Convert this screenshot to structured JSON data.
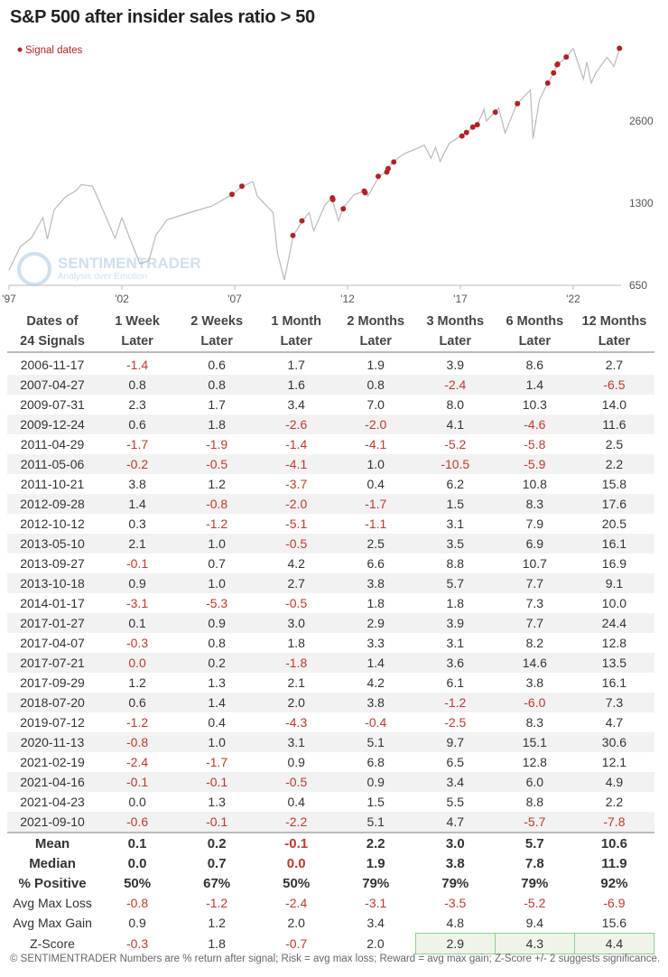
{
  "title": "S&P 500 after insider sales ratio > 50",
  "footer": "© SENTIMENTRADER  Numbers are % return after signal; Risk = avg max loss; Reward = avg max gain; Z-Score +/- 2 suggests significance.",
  "chart_data": {
    "type": "line",
    "title": "S&P 500 after insider sales ratio > 50",
    "legend": {
      "label": "Signal dates",
      "placement": "top-left"
    },
    "watermark": [
      "SENTIMENTRADER",
      "Analysis over Emotion"
    ],
    "y_scale": "log",
    "ylim": [
      650,
      5000
    ],
    "y_ticks": [
      {
        "value": 650,
        "label": "650"
      },
      {
        "value": 1300,
        "label": "1300"
      },
      {
        "value": 2600,
        "label": "2600"
      }
    ],
    "x_ticks": [
      {
        "value": 1997,
        "label": "'97"
      },
      {
        "value": 2002,
        "label": "'02"
      },
      {
        "value": 2007,
        "label": "'07"
      },
      {
        "value": 2012,
        "label": "'12"
      },
      {
        "value": 2017,
        "label": "'17"
      },
      {
        "value": 2022,
        "label": "'22"
      }
    ],
    "xlim": [
      1997,
      2024.3
    ],
    "colors": {
      "line": "#b9b9b9",
      "signal": "#b22222",
      "axis": "#bbbbbb"
    },
    "series": [
      {
        "name": "S&P 500",
        "x": [
          1997.0,
          1997.5,
          1998.0,
          1998.5,
          1998.7,
          1999.0,
          1999.5,
          2000.0,
          2000.2,
          2000.7,
          2001.0,
          2001.7,
          2002.0,
          2002.5,
          2002.8,
          2003.2,
          2003.5,
          2004.0,
          2005.0,
          2006.0,
          2006.9,
          2007.3,
          2007.8,
          2008.0,
          2008.7,
          2008.9,
          2009.2,
          2009.6,
          2010.0,
          2010.3,
          2010.5,
          2011.0,
          2011.3,
          2011.6,
          2011.8,
          2012.3,
          2012.8,
          2012.9,
          2013.4,
          2013.7,
          2013.8,
          2014.0,
          2014.5,
          2015.0,
          2015.4,
          2015.7,
          2015.9,
          2016.1,
          2016.5,
          2017.0,
          2017.3,
          2017.55,
          2017.75,
          2018.05,
          2018.15,
          2018.7,
          2018.98,
          2019.5,
          2020.1,
          2020.22,
          2020.5,
          2020.87,
          2021.13,
          2021.3,
          2021.7,
          2022.0,
          2022.45,
          2022.6,
          2022.8,
          2023.0,
          2023.5,
          2023.8,
          2024.1
        ],
        "values": [
          740,
          900,
          970,
          1150,
          960,
          1230,
          1370,
          1450,
          1520,
          1500,
          1320,
          965,
          1150,
          900,
          780,
          800,
          990,
          1130,
          1200,
          1270,
          1400,
          1490,
          1560,
          1380,
          1200,
          850,
          680,
          990,
          1120,
          1200,
          1030,
          1280,
          1360,
          1120,
          1250,
          1400,
          1440,
          1380,
          1630,
          1690,
          1740,
          1840,
          1970,
          2050,
          2120,
          1900,
          2080,
          1850,
          2150,
          2290,
          2360,
          2470,
          2520,
          2870,
          2600,
          2900,
          2350,
          3000,
          3380,
          2240,
          3100,
          3580,
          3900,
          4180,
          4460,
          4790,
          3700,
          4280,
          3580,
          3900,
          4450,
          4120,
          4900
        ]
      }
    ],
    "signals": {
      "x": [
        2006.88,
        2007.32,
        2009.58,
        2009.98,
        2011.33,
        2011.35,
        2011.81,
        2012.74,
        2012.78,
        2013.36,
        2013.74,
        2013.8,
        2014.05,
        2017.07,
        2017.27,
        2017.55,
        2017.75,
        2018.55,
        2019.53,
        2020.87,
        2021.13,
        2021.29,
        2021.31,
        2021.69,
        2024.05
      ],
      "values": [
        1400,
        1500,
        990,
        1120,
        1360,
        1340,
        1240,
        1440,
        1420,
        1630,
        1690,
        1740,
        1840,
        2290,
        2360,
        2470,
        2520,
        2800,
        3010,
        3580,
        3900,
        4180,
        4200,
        4460,
        4800
      ]
    }
  },
  "table": {
    "headers": [
      [
        "Dates of",
        "24 Signals"
      ],
      [
        "1 Week",
        "Later"
      ],
      [
        "2 Weeks",
        "Later"
      ],
      [
        "1 Month",
        "Later"
      ],
      [
        "2 Months",
        "Later"
      ],
      [
        "3 Months",
        "Later"
      ],
      [
        "6 Months",
        "Later"
      ],
      [
        "12 Months",
        "Later"
      ]
    ],
    "rows": [
      [
        "2006-11-17",
        "-1.4",
        "0.6",
        "1.7",
        "1.9",
        "3.9",
        "8.6",
        "2.7"
      ],
      [
        "2007-04-27",
        "0.8",
        "0.8",
        "1.6",
        "0.8",
        "-2.4",
        "1.4",
        "-6.5"
      ],
      [
        "2009-07-31",
        "2.3",
        "1.7",
        "3.4",
        "7.0",
        "8.0",
        "10.3",
        "14.0"
      ],
      [
        "2009-12-24",
        "0.6",
        "1.8",
        "-2.6",
        "-2.0",
        "4.1",
        "-4.6",
        "11.6"
      ],
      [
        "2011-04-29",
        "-1.7",
        "-1.9",
        "-1.4",
        "-4.1",
        "-5.2",
        "-5.8",
        "2.5"
      ],
      [
        "2011-05-06",
        "-0.2",
        "-0.5",
        "-4.1",
        "1.0",
        "-10.5",
        "-5.9",
        "2.2"
      ],
      [
        "2011-10-21",
        "3.8",
        "1.2",
        "-3.7",
        "0.4",
        "6.2",
        "10.8",
        "15.8"
      ],
      [
        "2012-09-28",
        "1.4",
        "-0.8",
        "-2.0",
        "-1.7",
        "1.5",
        "8.3",
        "17.6"
      ],
      [
        "2012-10-12",
        "0.3",
        "-1.2",
        "-5.1",
        "-1.1",
        "3.1",
        "7.9",
        "20.5"
      ],
      [
        "2013-05-10",
        "2.1",
        "1.0",
        "-0.5",
        "2.5",
        "3.5",
        "6.9",
        "16.1"
      ],
      [
        "2013-09-27",
        "-0.1",
        "0.7",
        "4.2",
        "6.6",
        "8.8",
        "10.7",
        "16.9"
      ],
      [
        "2013-10-18",
        "0.9",
        "1.0",
        "2.7",
        "3.8",
        "5.7",
        "7.7",
        "9.1"
      ],
      [
        "2014-01-17",
        "-3.1",
        "-5.3",
        "-0.5",
        "1.8",
        "1.8",
        "7.3",
        "10.0"
      ],
      [
        "2017-01-27",
        "0.1",
        "0.9",
        "3.0",
        "2.9",
        "3.9",
        "7.7",
        "24.4"
      ],
      [
        "2017-04-07",
        "-0.3",
        "0.8",
        "1.8",
        "3.3",
        "3.1",
        "8.2",
        "12.8"
      ],
      [
        "2017-07-21",
        "0.0",
        "0.2",
        "-1.8",
        "1.4",
        "3.6",
        "14.6",
        "13.5"
      ],
      [
        "2017-09-29",
        "1.2",
        "1.3",
        "2.1",
        "4.2",
        "6.1",
        "3.8",
        "16.1"
      ],
      [
        "2018-07-20",
        "0.6",
        "1.4",
        "2.0",
        "3.8",
        "-1.2",
        "-6.0",
        "7.3"
      ],
      [
        "2019-07-12",
        "-1.2",
        "0.4",
        "-4.3",
        "-0.4",
        "-2.5",
        "8.3",
        "4.7"
      ],
      [
        "2020-11-13",
        "-0.8",
        "1.0",
        "3.1",
        "5.1",
        "9.7",
        "15.1",
        "30.6"
      ],
      [
        "2021-02-19",
        "-2.4",
        "-1.7",
        "0.9",
        "6.8",
        "6.5",
        "12.8",
        "12.1"
      ],
      [
        "2021-04-16",
        "-0.1",
        "-0.1",
        "-0.5",
        "0.9",
        "3.4",
        "6.0",
        "4.9"
      ],
      [
        "2021-04-23",
        "0.0",
        "1.3",
        "0.4",
        "1.5",
        "5.5",
        "8.8",
        "2.2"
      ],
      [
        "2021-09-10",
        "-0.6",
        "-0.1",
        "-2.2",
        "5.1",
        "4.7",
        "-5.7",
        "-7.8"
      ]
    ],
    "neg_flags": {
      "2017-07-21": [
        1
      ]
    },
    "stats": [
      {
        "label": "Mean",
        "values": [
          "0.1",
          "0.2",
          "-0.1",
          "2.2",
          "3.0",
          "5.7",
          "10.6"
        ],
        "bold": true
      },
      {
        "label": "Median",
        "values": [
          "0.0",
          "0.7",
          "0.0",
          "1.9",
          "3.8",
          "7.8",
          "11.9"
        ],
        "bold": true,
        "red": [
          2
        ]
      },
      {
        "label": "% Positive",
        "values": [
          "50%",
          "67%",
          "50%",
          "79%",
          "79%",
          "79%",
          "92%"
        ],
        "bold": true
      },
      {
        "label": "Avg Max Loss",
        "values": [
          "-0.8",
          "-1.2",
          "-2.4",
          "-3.1",
          "-3.5",
          "-5.2",
          "-6.9"
        ]
      },
      {
        "label": "Avg Max Gain",
        "values": [
          "0.9",
          "1.2",
          "2.0",
          "3.4",
          "4.8",
          "9.4",
          "15.6"
        ]
      },
      {
        "label": "Z-Score",
        "values": [
          "-0.3",
          "1.8",
          "-0.7",
          "2.0",
          "2.9",
          "4.3",
          "4.4"
        ],
        "significant": [
          4,
          5,
          6
        ]
      }
    ]
  }
}
